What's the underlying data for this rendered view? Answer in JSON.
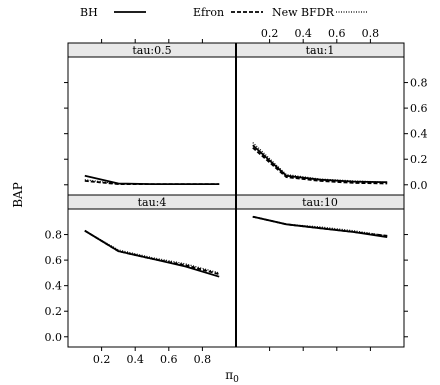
{
  "chart_data": {
    "type": "line",
    "xlabel": "π",
    "xlabel_sub": "0",
    "ylabel": "BAP",
    "xlim": [
      0.0,
      1.0
    ],
    "ylim": [
      -0.08,
      1.0
    ],
    "x_ticks": [
      "0.2",
      "0.4",
      "0.6",
      "0.8"
    ],
    "y_ticks": [
      "0.0",
      "0.2",
      "0.4",
      "0.6",
      "0.8"
    ],
    "legend": {
      "placement": "top",
      "entries": [
        {
          "name": "BH",
          "style": "solid"
        },
        {
          "name": "Efron",
          "style": "dashed"
        },
        {
          "name": "New BFDR",
          "style": "dotted"
        }
      ]
    },
    "panels": [
      {
        "key": "tau05",
        "strip": "tau:0.5",
        "x": [
          0.1,
          0.3,
          0.5,
          0.7,
          0.9
        ],
        "series": [
          {
            "name": "BH",
            "values": [
              0.07,
              0.01,
              0.005,
              0.005,
              0.005
            ]
          },
          {
            "name": "Efron",
            "values": [
              0.03,
              0.005,
              0.005,
              0.005,
              0.005
            ]
          },
          {
            "name": "New BFDR",
            "values": [
              0.04,
              0.008,
              0.005,
              0.005,
              0.005
            ]
          }
        ]
      },
      {
        "key": "tau1",
        "strip": "tau:1",
        "x": [
          0.1,
          0.3,
          0.5,
          0.7,
          0.9
        ],
        "series": [
          {
            "name": "BH",
            "values": [
              0.31,
              0.07,
              0.04,
              0.025,
              0.02
            ]
          },
          {
            "name": "Efron",
            "values": [
              0.29,
              0.06,
              0.03,
              0.015,
              0.01
            ]
          },
          {
            "name": "New BFDR",
            "values": [
              0.33,
              0.08,
              0.045,
              0.03,
              0.02
            ]
          }
        ]
      },
      {
        "key": "tau4",
        "strip": "tau:4",
        "x": [
          0.1,
          0.3,
          0.5,
          0.7,
          0.9
        ],
        "series": [
          {
            "name": "BH",
            "values": [
              0.83,
              0.67,
              0.61,
              0.55,
              0.47
            ]
          },
          {
            "name": "Efron",
            "values": [
              0.83,
              0.67,
              0.61,
              0.56,
              0.49
            ]
          },
          {
            "name": "New BFDR",
            "values": [
              0.83,
              0.68,
              0.62,
              0.57,
              0.5
            ]
          }
        ]
      },
      {
        "key": "tau10",
        "strip": "tau:10",
        "x": [
          0.1,
          0.3,
          0.5,
          0.7,
          0.9
        ],
        "series": [
          {
            "name": "BH",
            "values": [
              0.94,
              0.88,
              0.85,
              0.82,
              0.78
            ]
          },
          {
            "name": "Efron",
            "values": [
              0.94,
              0.88,
              0.85,
              0.82,
              0.79
            ]
          },
          {
            "name": "New BFDR",
            "values": [
              0.94,
              0.88,
              0.86,
              0.83,
              0.79
            ]
          }
        ]
      }
    ]
  }
}
